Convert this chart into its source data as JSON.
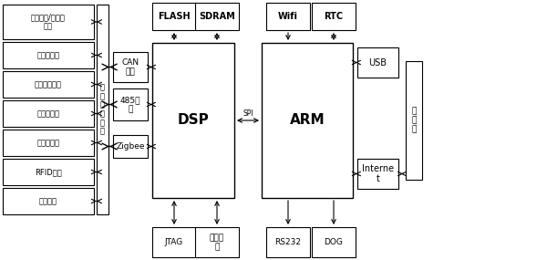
{
  "figsize": [
    6.0,
    2.85
  ],
  "dpi": 100,
  "bg_color": "#ffffff",
  "box_color": "#ffffff",
  "box_edge": "#000000",
  "text_color": "#000000",
  "sensors": [
    "交流电流/电压传\n感器",
    "气体传感器",
    "温湿度传感器",
    "红外传感器",
    "霍尔传感器",
    "RFID模块",
    "控制机构"
  ],
  "bus_labels": [
    "CAN\n总线",
    "485总\n线",
    "Zigbee"
  ],
  "top_modules": [
    "FLASH",
    "SDRAM",
    "Wifi",
    "RTC"
  ],
  "bottom_modules": [
    "JTAG",
    "电源模\n块",
    "RS232",
    "DOG"
  ],
  "right_modules": [
    "USB",
    "Interne\nt"
  ],
  "server_label": "服\n务\n器",
  "field_unit_label": "现\n场\n监\n测\n单\n元",
  "dsp_label": "DSP",
  "arm_label": "ARM",
  "spi_label": "SPI"
}
